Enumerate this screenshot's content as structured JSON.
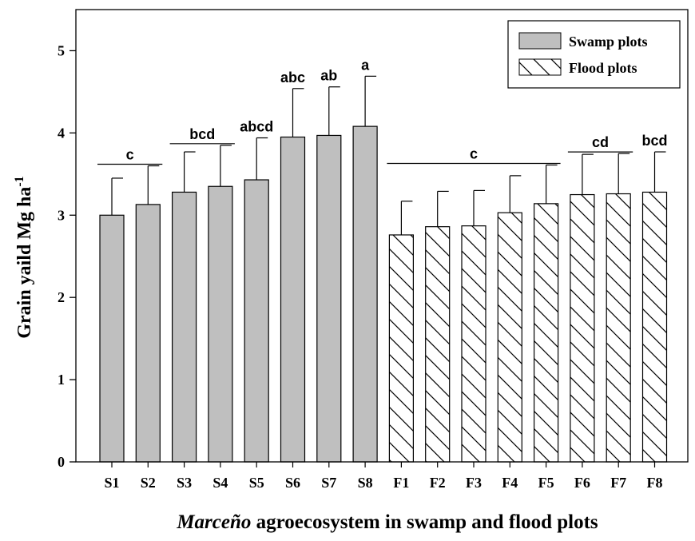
{
  "chart_data": {
    "type": "bar",
    "categories": [
      "S1",
      "S2",
      "S3",
      "S4",
      "S5",
      "S6",
      "S7",
      "S8",
      "F1",
      "F2",
      "F3",
      "F4",
      "F5",
      "F6",
      "F7",
      "F8"
    ],
    "values": [
      3.0,
      3.13,
      3.28,
      3.35,
      3.43,
      3.95,
      3.97,
      4.08,
      2.76,
      2.86,
      2.87,
      3.03,
      3.14,
      3.25,
      3.26,
      3.28
    ],
    "errors": [
      0.45,
      0.47,
      0.49,
      0.5,
      0.51,
      0.59,
      0.59,
      0.61,
      0.41,
      0.43,
      0.43,
      0.45,
      0.47,
      0.49,
      0.49,
      0.49
    ],
    "series_of_bar": [
      "swamp",
      "swamp",
      "swamp",
      "swamp",
      "swamp",
      "swamp",
      "swamp",
      "swamp",
      "flood",
      "flood",
      "flood",
      "flood",
      "flood",
      "flood",
      "flood",
      "flood"
    ],
    "xlabel": {
      "italic": "Marceño",
      "rest": " agroecosystem in swamp and flood plots"
    },
    "ylabel": {
      "main": "Grain yaild Mg ha",
      "sup": "-1"
    },
    "ylim": [
      0,
      5.5
    ],
    "yticks": [
      0,
      1,
      2,
      3,
      4,
      5
    ],
    "legend": {
      "position": "top-right",
      "items": [
        {
          "key": "swamp",
          "label": "Swamp plots"
        },
        {
          "key": "flood",
          "label": "Flood plots"
        }
      ]
    },
    "group_labels": [
      {
        "text": "c",
        "from": 0,
        "to": 1,
        "line": true
      },
      {
        "text": "bcd",
        "from": 2,
        "to": 3,
        "line": true
      },
      {
        "text": "abcd",
        "from": 4,
        "to": 4,
        "line": false
      },
      {
        "text": "abc",
        "from": 5,
        "to": 5,
        "line": false
      },
      {
        "text": "ab",
        "from": 6,
        "to": 6,
        "line": false
      },
      {
        "text": "a",
        "from": 7,
        "to": 7,
        "line": false
      },
      {
        "text": "c",
        "from": 8,
        "to": 12,
        "line": true
      },
      {
        "text": "cd",
        "from": 13,
        "to": 14,
        "line": true
      },
      {
        "text": "bcd",
        "from": 15,
        "to": 15,
        "line": false
      }
    ],
    "colors": {
      "swamp_fill": "#bfbfbf",
      "flood_fill": "#ffffff",
      "stroke": "#000000"
    }
  }
}
